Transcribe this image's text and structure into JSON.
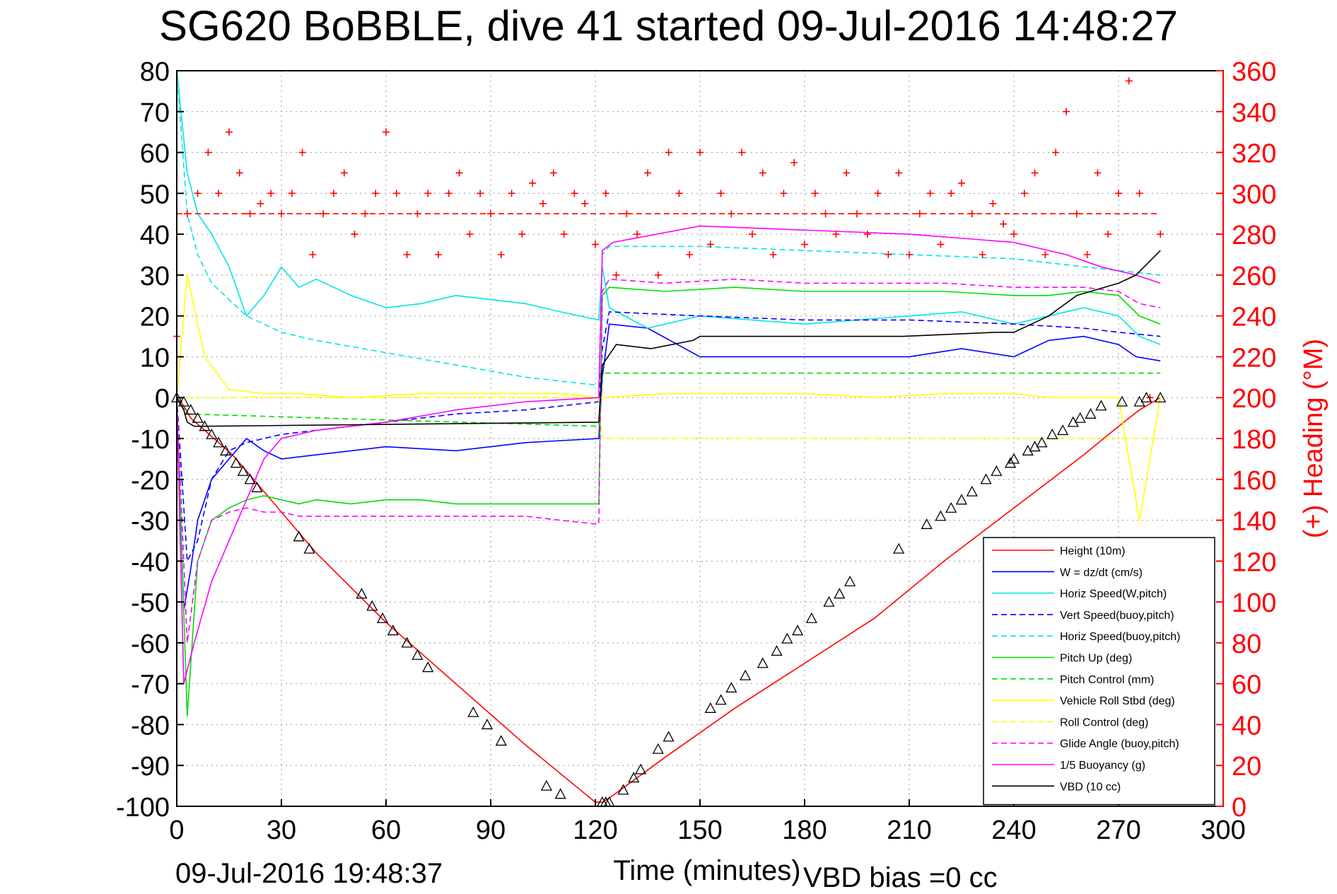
{
  "chart_data": {
    "type": "line",
    "title": "SG620 BoBBLE, dive 41 started 09-Jul-2016 14:48:27",
    "xlabel": "Time (minutes)",
    "ylabel": "",
    "y2label": "(+) Heading (°M)",
    "xlim": [
      0,
      300
    ],
    "ylim": [
      -100,
      80
    ],
    "y2lim": [
      0,
      360
    ],
    "xticks": [
      "0",
      "30",
      "60",
      "90",
      "120",
      "150",
      "180",
      "210",
      "240",
      "270",
      "300"
    ],
    "yticks": [
      "80",
      "70",
      "60",
      "50",
      "40",
      "30",
      "20",
      "10",
      "0",
      "-10",
      "-20",
      "-30",
      "-40",
      "-50",
      "-60",
      "-70",
      "-80",
      "-90",
      "-100"
    ],
    "y2ticks": [
      "360",
      "340",
      "320",
      "300",
      "280",
      "260",
      "240",
      "220",
      "200",
      "180",
      "160",
      "140",
      "120",
      "100",
      "80",
      "60",
      "40",
      "20",
      "0"
    ],
    "grid": true,
    "legend_position": "bottom-right",
    "series": [
      {
        "name": "Height (10m)",
        "color": "#ff0000",
        "style": "solid",
        "axis": "left",
        "x": [
          0,
          2,
          4,
          8,
          12,
          16,
          20,
          24,
          40,
          60,
          80,
          100,
          120,
          122,
          124,
          140,
          160,
          180,
          200,
          220,
          240,
          260,
          270,
          276,
          282
        ],
        "y": [
          0,
          -2,
          -5,
          -8,
          -11,
          -14,
          -18,
          -22,
          -38,
          -55,
          -70,
          -85,
          -99,
          -99,
          -98,
          -88,
          -76,
          -65,
          -54,
          -40,
          -27,
          -14,
          -7,
          -3,
          0
        ]
      },
      {
        "name": "W = dz/dt (cm/s)",
        "color": "#0000ff",
        "style": "solid",
        "axis": "left",
        "x": [
          0,
          2,
          4,
          6,
          10,
          15,
          20,
          25,
          30,
          40,
          60,
          80,
          100,
          121,
          122,
          124,
          135,
          150,
          180,
          210,
          225,
          240,
          250,
          260,
          270,
          275,
          282
        ],
        "y": [
          0,
          -52,
          -42,
          -30,
          -20,
          -15,
          -10,
          -13,
          -15,
          -14,
          -12,
          -13,
          -11,
          -10,
          5,
          18,
          17,
          10,
          10,
          10,
          12,
          10,
          14,
          15,
          13,
          10,
          9
        ]
      },
      {
        "name": "Horiz Speed(W,pitch)",
        "color": "#00e5e5",
        "style": "solid",
        "axis": "left",
        "x": [
          0,
          3,
          6,
          10,
          15,
          20,
          25,
          30,
          35,
          40,
          50,
          60,
          70,
          80,
          90,
          100,
          110,
          121,
          122,
          124,
          135,
          150,
          180,
          210,
          225,
          240,
          250,
          260,
          270,
          276,
          282
        ],
        "y": [
          80,
          55,
          45,
          40,
          32,
          20,
          25,
          32,
          27,
          29,
          25,
          22,
          23,
          25,
          24,
          23,
          21,
          19,
          32,
          22,
          17,
          20,
          18,
          20,
          21,
          18,
          20,
          22,
          20,
          15,
          13
        ]
      },
      {
        "name": "Vert Speed(buoy,pitch)",
        "color": "#0000ff",
        "style": "dashed",
        "axis": "left",
        "x": [
          0,
          3,
          6,
          10,
          15,
          20,
          30,
          40,
          60,
          80,
          100,
          121,
          122,
          124,
          150,
          180,
          210,
          240,
          260,
          270,
          282
        ],
        "y": [
          0,
          -40,
          -35,
          -20,
          -13,
          -11,
          -9,
          -8,
          -6,
          -4,
          -3,
          -1,
          12,
          21,
          20,
          19,
          19,
          18,
          17,
          16,
          15
        ]
      },
      {
        "name": "Horiz Speed(buoy,pitch)",
        "color": "#00e5e5",
        "style": "dashed",
        "axis": "left",
        "x": [
          0,
          3,
          6,
          10,
          20,
          30,
          40,
          60,
          80,
          100,
          121,
          122,
          124,
          150,
          180,
          210,
          240,
          260,
          282
        ],
        "y": [
          80,
          45,
          35,
          28,
          20,
          16,
          14,
          11,
          8,
          5,
          3,
          35,
          37,
          37,
          36,
          35,
          34,
          32,
          30
        ]
      },
      {
        "name": "Pitch Up (deg)",
        "color": "#00dd00",
        "style": "solid",
        "axis": "left",
        "x": [
          0,
          3,
          6,
          10,
          15,
          20,
          25,
          30,
          35,
          40,
          50,
          60,
          70,
          80,
          90,
          100,
          110,
          121,
          122,
          124,
          140,
          160,
          180,
          200,
          220,
          240,
          250,
          260,
          270,
          276,
          282
        ],
        "y": [
          0,
          -78,
          -40,
          -30,
          -27,
          -25,
          -24,
          -25,
          -26,
          -25,
          -26,
          -25,
          -25,
          -26,
          -26,
          -26,
          -26,
          -26,
          25,
          27,
          26,
          27,
          26,
          26,
          26,
          25,
          25,
          26,
          25,
          20,
          18
        ]
      },
      {
        "name": "Pitch Control (mm)",
        "color": "#00dd00",
        "style": "dashed",
        "axis": "left",
        "x": [
          0,
          3,
          121,
          122,
          282
        ],
        "y": [
          0,
          -4,
          -7,
          6,
          6
        ]
      },
      {
        "name": "Vehicle Roll Stbd (deg)",
        "color": "#ffff00",
        "style": "solid",
        "axis": "left",
        "x": [
          0,
          3,
          8,
          15,
          25,
          35,
          50,
          70,
          90,
          110,
          121,
          122,
          140,
          160,
          180,
          200,
          220,
          240,
          250,
          260,
          270,
          276,
          282
        ],
        "y": [
          0,
          30,
          10,
          2,
          1,
          1,
          0,
          1,
          1,
          1,
          0,
          0,
          1,
          1,
          1,
          0,
          1,
          1,
          0,
          0,
          0,
          -30,
          0
        ]
      },
      {
        "name": "Roll Control (deg)",
        "color": "#ffff00",
        "style": "dashed",
        "axis": "left",
        "x": [
          0,
          10,
          60,
          120,
          121,
          122,
          180,
          240,
          282
        ],
        "y": [
          0,
          0,
          0,
          0,
          0,
          -10,
          -10,
          -10,
          -10
        ]
      },
      {
        "name": "Glide Angle (buoy,pitch)",
        "color": "#ff00ff",
        "style": "dashed",
        "axis": "left",
        "x": [
          0,
          3,
          6,
          10,
          15,
          20,
          25,
          30,
          35,
          40,
          50,
          60,
          70,
          80,
          90,
          100,
          110,
          121,
          122,
          124,
          140,
          160,
          180,
          200,
          220,
          240,
          250,
          260,
          270,
          276,
          282
        ],
        "y": [
          0,
          -60,
          -40,
          -30,
          -28,
          -27,
          -28,
          -28,
          -29,
          -29,
          -29,
          -29,
          -29,
          -29,
          -29,
          -29,
          -30,
          -31,
          26,
          29,
          28,
          29,
          28,
          28,
          28,
          27,
          27,
          27,
          26,
          23,
          22
        ]
      },
      {
        "name": "1/5 Buoyancy (g)",
        "color": "#ff00ff",
        "style": "solid",
        "axis": "left",
        "x": [
          0,
          2,
          5,
          10,
          15,
          20,
          25,
          30,
          40,
          60,
          80,
          100,
          121,
          122,
          125,
          150,
          180,
          210,
          240,
          255,
          265,
          275,
          282
        ],
        "y": [
          0,
          -70,
          -60,
          -45,
          -35,
          -25,
          -15,
          -10,
          -8,
          -6,
          -3,
          -1,
          0,
          36,
          38,
          42,
          41,
          40,
          38,
          35,
          32,
          30,
          28
        ]
      },
      {
        "name": "VBD (10 cc)",
        "color": "#000000",
        "style": "solid",
        "axis": "left",
        "x": [
          0,
          2,
          3,
          5,
          8,
          121,
          122,
          126,
          136,
          148,
          150,
          208,
          235,
          240,
          250,
          258,
          270,
          275,
          282
        ],
        "y": [
          0,
          -3,
          -6,
          -7,
          -7,
          -6,
          8,
          13,
          12,
          14,
          15,
          15,
          16,
          16,
          20,
          25,
          28,
          30,
          36
        ]
      },
      {
        "name": "",
        "color": "#ff0000",
        "style": "dashed",
        "axis": "right",
        "x": [
          0,
          282
        ],
        "y": [
          290,
          290
        ]
      }
    ],
    "heading_scatter": {
      "color": "#ff0000",
      "marker": "+",
      "axis": "right",
      "x": [
        0,
        3,
        6,
        9,
        12,
        15,
        18,
        21,
        24,
        27,
        30,
        33,
        36,
        39,
        42,
        45,
        48,
        51,
        54,
        57,
        60,
        63,
        66,
        69,
        72,
        75,
        78,
        81,
        84,
        87,
        90,
        93,
        96,
        99,
        102,
        105,
        108,
        111,
        114,
        117,
        120,
        123,
        126,
        129,
        132,
        135,
        138,
        141,
        144,
        147,
        150,
        153,
        156,
        159,
        162,
        165,
        168,
        171,
        174,
        177,
        180,
        183,
        186,
        189,
        192,
        195,
        198,
        201,
        204,
        207,
        210,
        213,
        216,
        219,
        222,
        225,
        228,
        231,
        234,
        237,
        240,
        243,
        246,
        249,
        252,
        255,
        258,
        261,
        264,
        267,
        270,
        273,
        276,
        279,
        282
      ],
      "y": [
        230,
        290,
        300,
        320,
        300,
        330,
        310,
        290,
        295,
        300,
        290,
        300,
        320,
        270,
        290,
        300,
        310,
        280,
        290,
        300,
        330,
        300,
        270,
        290,
        300,
        270,
        300,
        310,
        280,
        300,
        290,
        270,
        300,
        280,
        305,
        295,
        310,
        280,
        300,
        295,
        275,
        300,
        260,
        290,
        280,
        310,
        260,
        320,
        300,
        270,
        320,
        275,
        300,
        290,
        320,
        280,
        310,
        270,
        300,
        315,
        275,
        300,
        290,
        280,
        310,
        290,
        280,
        300,
        270,
        310,
        270,
        290,
        300,
        275,
        300,
        305,
        290,
        270,
        295,
        285,
        280,
        300,
        310,
        270,
        320,
        340,
        290,
        270,
        310,
        280,
        300,
        355,
        300,
        200,
        280
      ]
    },
    "markers": {
      "color": "#000000",
      "shape": "triangle",
      "axis": "left",
      "x": [
        0,
        2,
        4,
        6,
        8,
        10,
        12,
        14,
        17,
        19,
        21,
        23,
        35,
        38,
        53,
        56,
        59,
        62,
        66,
        69,
        72,
        85,
        89,
        93,
        106,
        110,
        122,
        123,
        124,
        128,
        131,
        133,
        138,
        141,
        153,
        156,
        159,
        163,
        168,
        172,
        175,
        178,
        182,
        187,
        190,
        193,
        207,
        215,
        219,
        222,
        225,
        228,
        232,
        235,
        239,
        240,
        244,
        246,
        248,
        251,
        254,
        257,
        259,
        262,
        265,
        271,
        276,
        278,
        282
      ],
      "y": [
        0,
        -1,
        -3,
        -5,
        -7,
        -9,
        -11,
        -13,
        -16,
        -18,
        -20,
        -22,
        -34,
        -37,
        -48,
        -51,
        -54,
        -57,
        -60,
        -63,
        -66,
        -77,
        -80,
        -84,
        -95,
        -97,
        -99,
        -99,
        -99,
        -96,
        -93,
        -91,
        -86,
        -83,
        -76,
        -74,
        -71,
        -68,
        -65,
        -62,
        -59,
        -57,
        -54,
        -50,
        -48,
        -45,
        -37,
        -31,
        -29,
        -27,
        -25,
        -23,
        -20,
        -18,
        -16,
        -15,
        -13,
        -12,
        -11,
        -9,
        -8,
        -6,
        -5,
        -4,
        -2,
        -1,
        -1,
        0,
        0
      ]
    }
  },
  "footer": {
    "timestamp": "09-Jul-2016 19:48:37",
    "vbd_bias": "VBD bias =0 cc"
  }
}
